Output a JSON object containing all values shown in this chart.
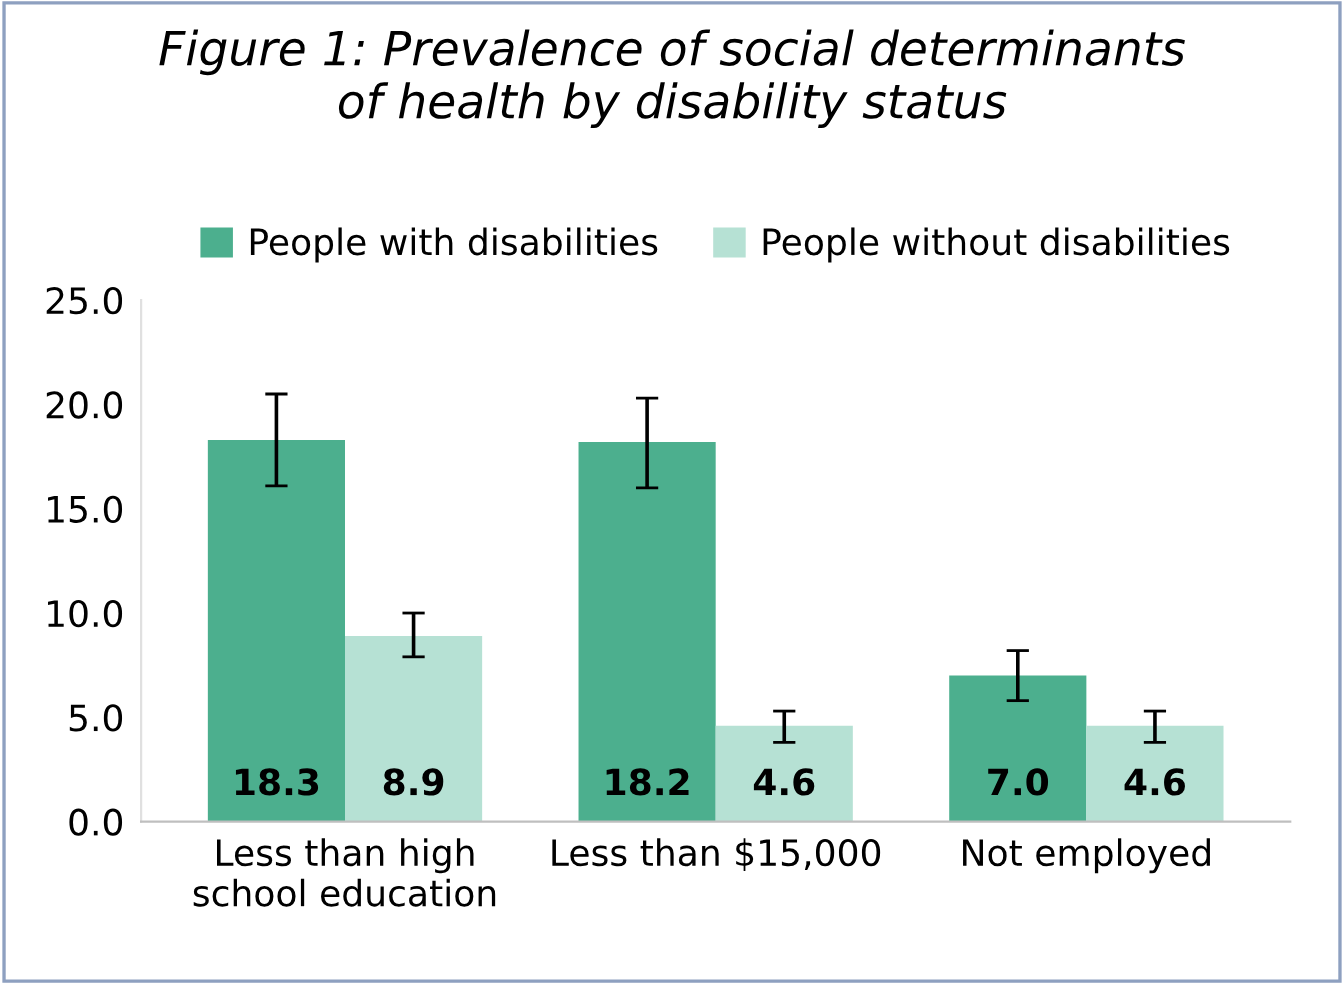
{
  "chart_data": {
    "type": "bar",
    "title": "Figure 1: Prevalence of social determinants\nof health by disability status",
    "categories": [
      "Less than high\nschool education",
      "Less than $15,000",
      "Not employed"
    ],
    "series": [
      {
        "name": "People with disabilities",
        "color": "#4caf8e",
        "values": [
          18.3,
          18.2,
          7.0
        ],
        "value_labels": [
          "18.3",
          "18.2",
          "7.0"
        ],
        "errors": [
          [
            16.1,
            20.5
          ],
          [
            16.0,
            20.3
          ],
          [
            5.8,
            8.2
          ]
        ]
      },
      {
        "name": "People without disabilities",
        "color": "#b6e1d4",
        "values": [
          8.9,
          4.6,
          4.6
        ],
        "value_labels": [
          "8.9",
          "4.6",
          "4.6"
        ],
        "errors": [
          [
            7.9,
            10.0
          ],
          [
            3.8,
            5.3
          ],
          [
            3.8,
            5.3
          ]
        ]
      }
    ],
    "ylim": [
      0,
      25
    ],
    "yticks": [
      {
        "value": 0,
        "label": "0.0"
      },
      {
        "value": 5,
        "label": "5.0"
      },
      {
        "value": 10,
        "label": "10.0"
      },
      {
        "value": 15,
        "label": "15.0"
      },
      {
        "value": 20,
        "label": "20.0"
      },
      {
        "value": 25,
        "label": "25.0"
      }
    ],
    "grid": false,
    "legend": "top"
  }
}
